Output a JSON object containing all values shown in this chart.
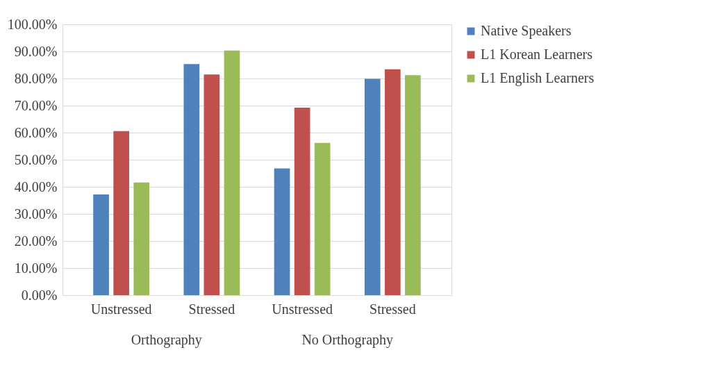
{
  "chart_data": {
    "type": "bar",
    "categories": [
      "Unstressed",
      "Stressed",
      "Unstressed",
      "Stressed"
    ],
    "annotations": [
      "Orthography",
      "No Orthography"
    ],
    "series": [
      {
        "name": "Native Speakers",
        "color": "#4f81bd",
        "values": [
          37.2,
          85.3,
          46.8,
          79.9
        ]
      },
      {
        "name": "L1 Korean Learners",
        "color": "#c0504d",
        "values": [
          60.6,
          81.5,
          69.2,
          83.4
        ]
      },
      {
        "name": "L1 English Learners",
        "color": "#9bbb59",
        "values": [
          41.6,
          90.3,
          56.2,
          81.2
        ]
      }
    ],
    "ylim": [
      0,
      100
    ],
    "yticks": [
      {
        "value": 0,
        "label": "0.00%"
      },
      {
        "value": 10,
        "label": "10.00%"
      },
      {
        "value": 20,
        "label": "20.00%"
      },
      {
        "value": 30,
        "label": "30.00%"
      },
      {
        "value": 40,
        "label": "40.00%"
      },
      {
        "value": 50,
        "label": "50.00%"
      },
      {
        "value": 60,
        "label": "60.00%"
      },
      {
        "value": 70,
        "label": "70.00%"
      },
      {
        "value": 80,
        "label": "80.00%"
      },
      {
        "value": 90,
        "label": "90.00%"
      },
      {
        "value": 100,
        "label": "100.00%"
      }
    ],
    "grid": "y",
    "legend": "right"
  }
}
